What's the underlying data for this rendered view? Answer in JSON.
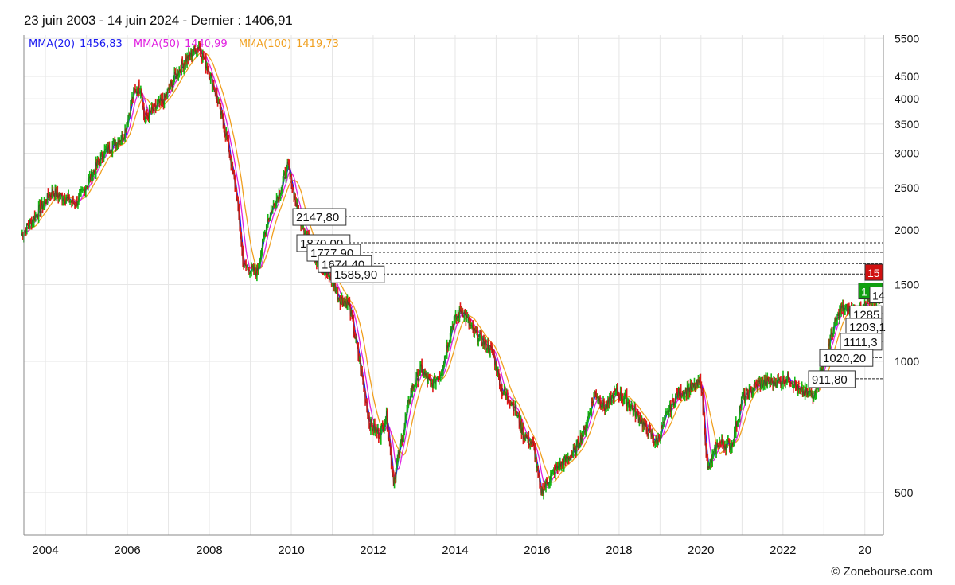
{
  "title": "23 juin 2003 - 14 juin 2024 - Dernier : 1406,91",
  "copyright": "© Zonebourse.com",
  "legend": {
    "mma20_label": "MMA(20)",
    "mma20_value": "1456,83",
    "mma50_label": "MMA(50)",
    "mma50_value": "1440,99",
    "mma100_label": "MMA(100)",
    "mma100_value": "1419,73"
  },
  "colors": {
    "mma20": "#1b1bf0",
    "mma50": "#e020e0",
    "mma100": "#f0a020",
    "up": "#14b814",
    "down": "#e01818",
    "grid": "#e6e6e6",
    "level_line": "#222222",
    "badge_red": "#d01010",
    "badge_green": "#10a010"
  },
  "chart_data": {
    "type": "line",
    "scale": "log",
    "xlim": [
      "2003-06-23",
      "2024-06-14"
    ],
    "ylim": [
      400,
      5600
    ],
    "x_ticks": [
      "2004",
      "2006",
      "2008",
      "2010",
      "2012",
      "2014",
      "2016",
      "2018",
      "2020",
      "2022",
      "20"
    ],
    "y_ticks": [
      "500",
      "1000",
      "1500",
      "2000",
      "2500",
      "3000",
      "3500",
      "4000",
      "4500",
      "5500"
    ],
    "grid": true,
    "price_points": [
      [
        "2003-06",
        1950
      ],
      [
        "2003-10",
        2150
      ],
      [
        "2004-03",
        2450
      ],
      [
        "2004-06",
        2380
      ],
      [
        "2004-10",
        2300
      ],
      [
        "2005-03",
        2700
      ],
      [
        "2005-06",
        3000
      ],
      [
        "2005-12",
        3300
      ],
      [
        "2006-03",
        4150
      ],
      [
        "2006-05",
        4250
      ],
      [
        "2006-06",
        3600
      ],
      [
        "2006-12",
        4000
      ],
      [
        "2007-03",
        4500
      ],
      [
        "2007-06",
        4900
      ],
      [
        "2007-10",
        5300
      ],
      [
        "2008-01",
        4600
      ],
      [
        "2008-03",
        4100
      ],
      [
        "2008-06",
        3300
      ],
      [
        "2008-09",
        2400
      ],
      [
        "2008-11",
        1650
      ],
      [
        "2009-03",
        1600
      ],
      [
        "2009-06",
        2100
      ],
      [
        "2009-10",
        2500
      ],
      [
        "2009-12",
        2800
      ],
      [
        "2010-03",
        2200
      ],
      [
        "2010-06",
        1900
      ],
      [
        "2010-09",
        1650
      ],
      [
        "2011-01",
        1550
      ],
      [
        "2011-03",
        1400
      ],
      [
        "2011-06",
        1350
      ],
      [
        "2011-09",
        1000
      ],
      [
        "2011-12",
        720
      ],
      [
        "2012-03",
        680
      ],
      [
        "2012-05",
        750
      ],
      [
        "2012-07",
        530
      ],
      [
        "2012-12",
        850
      ],
      [
        "2013-03",
        960
      ],
      [
        "2013-06",
        880
      ],
      [
        "2013-09",
        950
      ],
      [
        "2013-12",
        1200
      ],
      [
        "2014-03",
        1320
      ],
      [
        "2014-06",
        1180
      ],
      [
        "2014-12",
        1050
      ],
      [
        "2015-03",
        850
      ],
      [
        "2015-06",
        800
      ],
      [
        "2015-09",
        680
      ],
      [
        "2015-12",
        640
      ],
      [
        "2016-02",
        500
      ],
      [
        "2016-06",
        560
      ],
      [
        "2016-12",
        620
      ],
      [
        "2017-03",
        700
      ],
      [
        "2017-06",
        850
      ],
      [
        "2017-09",
        780
      ],
      [
        "2017-12",
        850
      ],
      [
        "2018-03",
        820
      ],
      [
        "2018-06",
        760
      ],
      [
        "2018-09",
        700
      ],
      [
        "2018-12",
        650
      ],
      [
        "2019-03",
        750
      ],
      [
        "2019-06",
        840
      ],
      [
        "2019-12",
        880
      ],
      [
        "2020-01",
        900
      ],
      [
        "2020-03",
        560
      ],
      [
        "2020-06",
        650
      ],
      [
        "2020-10",
        640
      ],
      [
        "2021-01",
        820
      ],
      [
        "2021-06",
        890
      ],
      [
        "2021-12",
        900
      ],
      [
        "2022-03",
        920
      ],
      [
        "2022-06",
        850
      ],
      [
        "2022-10",
        840
      ],
      [
        "2023-01",
        1000
      ],
      [
        "2023-04",
        1200
      ],
      [
        "2023-06",
        1320
      ],
      [
        "2023-12",
        1300
      ],
      [
        "2024-03",
        1400
      ],
      [
        "2024-06",
        1406.91
      ]
    ],
    "levels": [
      {
        "label": "2147,80",
        "value": 2147.8
      },
      {
        "label": "1870,00",
        "value": 1870.0
      },
      {
        "label": "1777,90",
        "value": 1777.9
      },
      {
        "label": "1674,40",
        "value": 1674.4
      },
      {
        "label": "1585,90",
        "value": 1585.9
      },
      {
        "label": "1285",
        "value": 1285.0
      },
      {
        "label": "1203,1",
        "value": 1203.1
      },
      {
        "label": "1111,3",
        "value": 1111.3
      },
      {
        "label": "1020,20",
        "value": 1020.2
      },
      {
        "label": "911,80",
        "value": 911.8
      }
    ],
    "badges": [
      {
        "label": "15",
        "value": 1600,
        "color": "red"
      },
      {
        "label": "1",
        "value": 1450,
        "color": "green"
      },
      {
        "label": "14",
        "value": 1420,
        "color": "white"
      }
    ]
  }
}
